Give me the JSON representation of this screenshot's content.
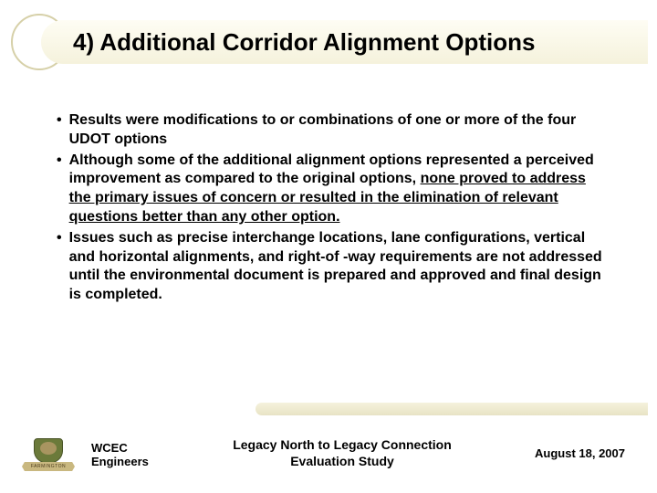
{
  "slide": {
    "title": "4) Additional Corridor Alignment Options",
    "bullets": [
      {
        "text_parts": [
          {
            "text": "Results were modifications to or combinations of one or more of the four UDOT options",
            "underline": false
          }
        ]
      },
      {
        "text_parts": [
          {
            "text": "Although some of the additional alignment options represented a perceived improvement as compared to the original options, ",
            "underline": false
          },
          {
            "text": "none proved to address the primary issues of concern or resulted in the elimination of relevant questions better than any other option.",
            "underline": true
          }
        ]
      },
      {
        "text_parts": [
          {
            "text": "Issues such as precise interchange locations, lane configurations, vertical and horizontal alignments, and right-of -way requirements are not addressed until the environmental document is prepared and approved and final design is completed.",
            "underline": false
          }
        ]
      }
    ]
  },
  "footer": {
    "logo_banner": "FARMINGTON",
    "org_line1": "WCEC",
    "org_line2": "Engineers",
    "center_line1": "Legacy North to Legacy Connection",
    "center_line2": "Evaluation Study",
    "date": "August 18, 2007"
  },
  "colors": {
    "title_bg_top": "#fefdf4",
    "title_bg_bottom": "#f5f2dc",
    "circle_border": "#d6d0a8",
    "text": "#000000",
    "divider_top": "#f5f2dc",
    "divider_bottom": "#e8e3c5",
    "logo_green": "#6b7a3a",
    "logo_tan": "#c9b880"
  },
  "typography": {
    "title_fontsize": 26,
    "bullet_fontsize": 16,
    "footer_fontsize": 13,
    "font_family": "Arial"
  }
}
